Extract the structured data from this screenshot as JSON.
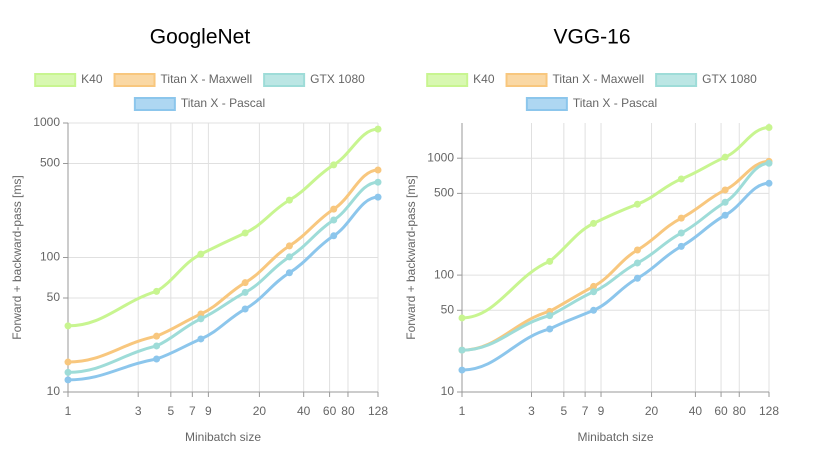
{
  "chart_data": [
    {
      "type": "line",
      "title": "GoogleNet",
      "xlabel": "Minibatch size",
      "ylabel": "Forward + backward-pass [ms]",
      "x": [
        1,
        4,
        8,
        16,
        32,
        64,
        128
      ],
      "xlim": [
        1,
        128
      ],
      "ylim": [
        10,
        1000
      ],
      "log_x": true,
      "log_y": true,
      "grid": true,
      "xticks": [
        1,
        3,
        5,
        7,
        9,
        20,
        40,
        60,
        80,
        128
      ],
      "yticks": [
        10,
        50,
        100,
        500,
        1000
      ],
      "series": [
        {
          "name": "K40",
          "color": "#c8f590",
          "values": [
            31,
            56,
            106,
            152,
            267,
            488,
            900
          ]
        },
        {
          "name": "Titan X - Maxwell",
          "color": "#f8c77e",
          "values": [
            16.7,
            26,
            38,
            65,
            122,
            229,
            447
          ]
        },
        {
          "name": "GTX 1080",
          "color": "#9edcd8",
          "values": [
            14,
            22,
            35,
            55,
            101,
            190,
            363
          ]
        },
        {
          "name": "Titan X - Pascal",
          "color": "#8cc6ec",
          "values": [
            12.3,
            17.6,
            24.8,
            41.4,
            77,
            145,
            281
          ]
        }
      ]
    },
    {
      "type": "line",
      "title": "VGG-16",
      "xlabel": "Minibatch size",
      "ylabel": "Forward + backward-pass [ms]",
      "x": [
        1,
        4,
        8,
        16,
        32,
        64,
        128
      ],
      "xlim": [
        1,
        128
      ],
      "ylim": [
        10,
        2000
      ],
      "log_x": true,
      "log_y": true,
      "grid": true,
      "xticks": [
        1,
        3,
        5,
        7,
        9,
        20,
        40,
        60,
        80,
        128
      ],
      "yticks": [
        10,
        50,
        100,
        500,
        1000
      ],
      "series": [
        {
          "name": "K40",
          "color": "#c8f590",
          "values": [
            43,
            131,
            277,
            404,
            664,
            1020,
            1830
          ]
        },
        {
          "name": "Titan X - Maxwell",
          "color": "#f8c77e",
          "values": [
            22.8,
            49,
            80,
            164,
            307,
            535,
            940
          ]
        },
        {
          "name": "GTX 1080",
          "color": "#9edcd8",
          "values": [
            22.8,
            45,
            72,
            127,
            229,
            420,
            905
          ]
        },
        {
          "name": "Titan X - Pascal",
          "color": "#8cc6ec",
          "values": [
            15.4,
            34.6,
            50,
            94,
            176,
            325,
            610
          ]
        }
      ]
    }
  ]
}
